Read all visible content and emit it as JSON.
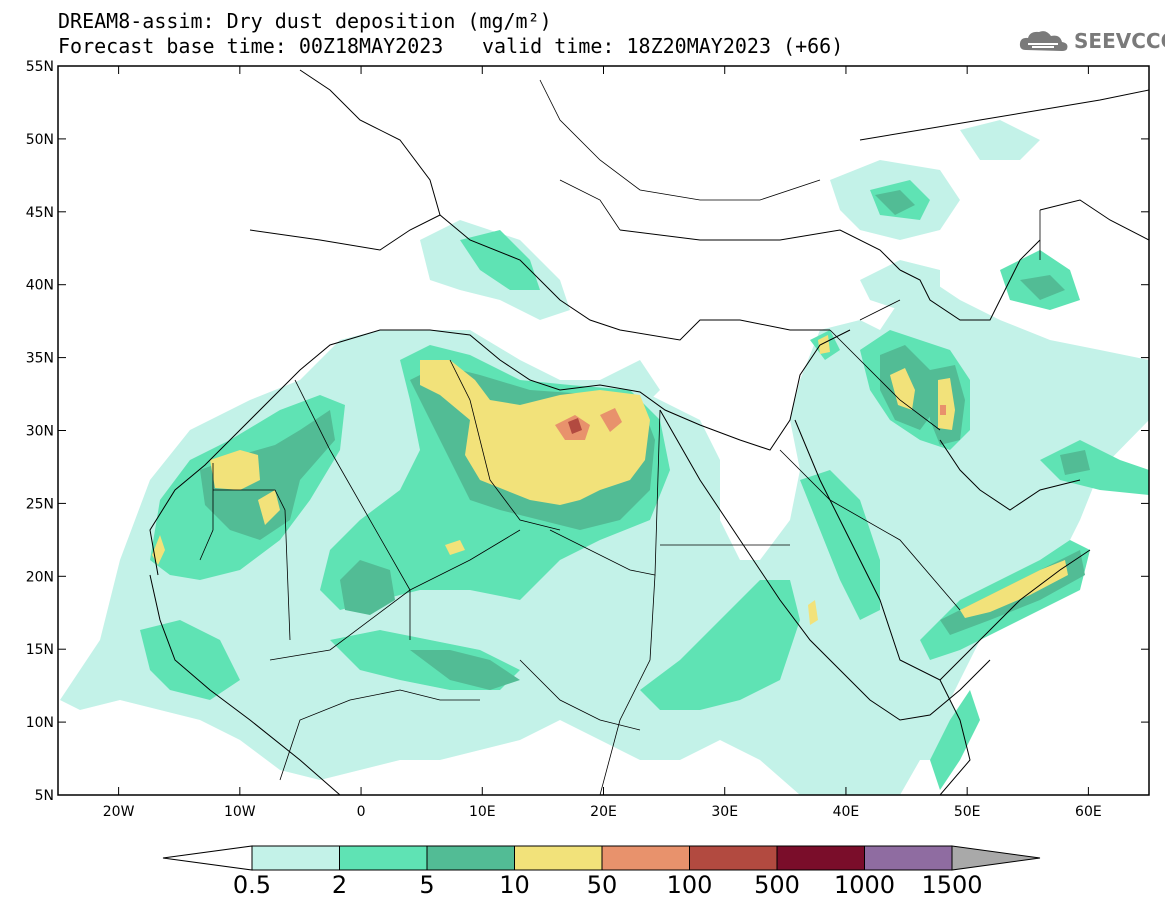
{
  "title": {
    "line1": "DREAM8-assim: Dry dust deposition (mg/m²)",
    "line2": "Forecast base time: 00Z18MAY2023",
    "valid": "valid time: 18Z20MAY2023 (+66)"
  },
  "logo": {
    "text": "SEEVCCC",
    "icon": "cloud-icon"
  },
  "map": {
    "lon_range": [
      -25,
      65
    ],
    "lat_range": [
      5,
      55
    ],
    "lat_ticks": [
      "55N",
      "50N",
      "45N",
      "40N",
      "35N",
      "30N",
      "25N",
      "20N",
      "15N",
      "10N",
      "5N"
    ],
    "lon_ticks": [
      "20W",
      "10W",
      "0",
      "10E",
      "20E",
      "30E",
      "40E",
      "50E",
      "60E"
    ]
  },
  "colorbar": {
    "labels": [
      "0.5",
      "2",
      "5",
      "10",
      "50",
      "100",
      "500",
      "1000",
      "1500"
    ],
    "colors": [
      "#c3f2e8",
      "#5fe3b4",
      "#52bc95",
      "#f2e27a",
      "#e8926c",
      "#b24a40",
      "#7a0d2a",
      "#8f6ca1",
      "#a9a9a9"
    ],
    "low_arrow_color": "#ffffff"
  }
}
